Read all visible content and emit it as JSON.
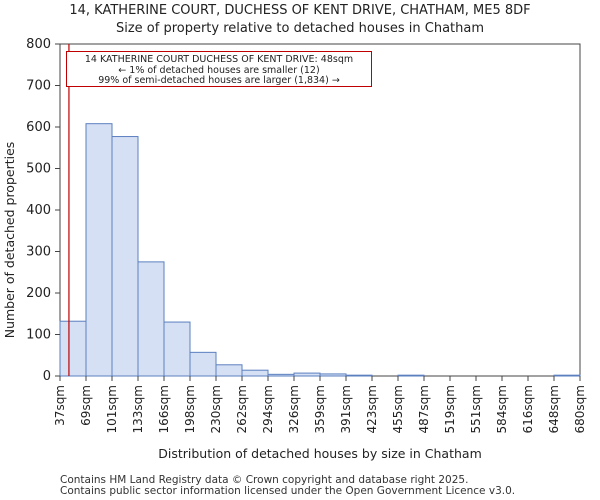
{
  "chart_data": {
    "type": "bar",
    "title": "14, KATHERINE COURT, DUCHESS OF KENT DRIVE, CHATHAM, ME5 8DF",
    "subtitle": "Size of property relative to detached houses in Chatham",
    "xlabel": "Distribution of detached houses by size in Chatham",
    "ylabel": "Number of detached properties",
    "ylim": [
      0,
      800
    ],
    "yticks": [
      0,
      100,
      200,
      300,
      400,
      500,
      600,
      700,
      800
    ],
    "bin_edges": [
      "37sqm",
      "69sqm",
      "101sqm",
      "133sqm",
      "166sqm",
      "198sqm",
      "230sqm",
      "262sqm",
      "294sqm",
      "326sqm",
      "359sqm",
      "391sqm",
      "423sqm",
      "455sqm",
      "487sqm",
      "519sqm",
      "551sqm",
      "584sqm",
      "616sqm",
      "648sqm",
      "680sqm"
    ],
    "values": [
      132,
      608,
      577,
      275,
      130,
      57,
      27,
      14,
      4,
      7,
      5,
      2,
      0,
      2,
      0,
      0,
      0,
      0,
      0,
      2
    ],
    "bar_fill": "#d6e0f5",
    "bar_edge": "#5b7fbf",
    "marker": {
      "value_sqm": 48,
      "color": "#c00000"
    },
    "annotation": {
      "line1": "14 KATHERINE COURT DUCHESS OF KENT DRIVE: 48sqm",
      "line2": "← 1% of detached houses are smaller (12)",
      "line3": "99% of semi-detached houses are larger (1,834) →"
    }
  },
  "footer": {
    "line1": "Contains HM Land Registry data © Crown copyright and database right 2025.",
    "line2": "Contains public sector information licensed under the Open Government Licence v3.0."
  }
}
